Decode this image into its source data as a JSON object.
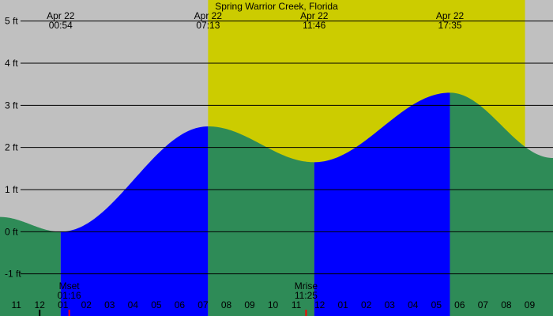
{
  "chart_data": {
    "type": "area",
    "title": "Spring Warrior Creek, Florida",
    "unit": "ft",
    "ylim": [
      -2,
      5.5
    ],
    "y_ticks": [
      {
        "value": 5,
        "label": "5 ft"
      },
      {
        "value": 4,
        "label": "4 ft"
      },
      {
        "value": 3,
        "label": "3 ft"
      },
      {
        "value": 2,
        "label": "2 ft"
      },
      {
        "value": 1,
        "label": "1 ft"
      },
      {
        "value": 0,
        "label": "0 ft"
      },
      {
        "value": -1,
        "label": "-1 ft"
      }
    ],
    "x_range_hours": [
      -1.7,
      22.0
    ],
    "hour_ticks": [
      {
        "hour": -1,
        "label": "11"
      },
      {
        "hour": 0,
        "label": "12"
      },
      {
        "hour": 1,
        "label": "01"
      },
      {
        "hour": 2,
        "label": "02"
      },
      {
        "hour": 3,
        "label": "03"
      },
      {
        "hour": 4,
        "label": "04"
      },
      {
        "hour": 5,
        "label": "05"
      },
      {
        "hour": 6,
        "label": "06"
      },
      {
        "hour": 7,
        "label": "07"
      },
      {
        "hour": 8,
        "label": "08"
      },
      {
        "hour": 9,
        "label": "09"
      },
      {
        "hour": 10,
        "label": "10"
      },
      {
        "hour": 11,
        "label": "11"
      },
      {
        "hour": 12,
        "label": "12"
      },
      {
        "hour": 13,
        "label": "01"
      },
      {
        "hour": 14,
        "label": "02"
      },
      {
        "hour": 15,
        "label": "03"
      },
      {
        "hour": 16,
        "label": "04"
      },
      {
        "hour": 17,
        "label": "05"
      },
      {
        "hour": 18,
        "label": "06"
      },
      {
        "hour": 19,
        "label": "07"
      },
      {
        "hour": 20,
        "label": "08"
      },
      {
        "hour": 21,
        "label": "09"
      }
    ],
    "tide_extremes": [
      {
        "hour": 0.9,
        "date": "Apr 22",
        "time": "00:54",
        "height": 0.0,
        "kind": "low"
      },
      {
        "hour": 7.2167,
        "date": "Apr 22",
        "time": "07:13",
        "height": 2.5,
        "kind": "high"
      },
      {
        "hour": 11.7667,
        "date": "Apr 22",
        "time": "11:46",
        "height": 1.65,
        "kind": "low"
      },
      {
        "hour": 17.5833,
        "date": "Apr 22",
        "time": "17:35",
        "height": 3.3,
        "kind": "high"
      }
    ],
    "edge_heights": {
      "start": 0.35,
      "end": 1.75
    },
    "daylight_hours": [
      7.2167,
      20.8
    ],
    "moon_events": [
      {
        "label": "Mset",
        "time": "01:16",
        "hour": 1.2667
      },
      {
        "label": "Mrise",
        "time": "11:25",
        "hour": 11.4167
      }
    ],
    "tick_mark_hours": [
      0,
      1.2667,
      11.4167
    ],
    "colors": {
      "night": "#c0c0c0",
      "day": "#cccc00",
      "rising": "#0000ff",
      "falling": "#2e8b57",
      "moon_marker": "#ff0000"
    }
  }
}
